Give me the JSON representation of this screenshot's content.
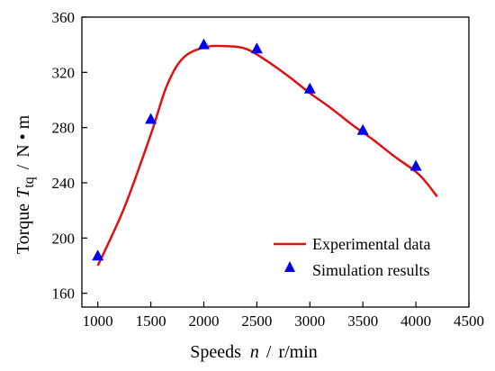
{
  "chart_data": {
    "type": "line",
    "xlabel": {
      "prefix": "Speeds",
      "symbol": "n",
      "sep": "/",
      "unit": "r/min"
    },
    "ylabel": {
      "prefix": "Torque",
      "symbol": "T",
      "subscript": "tq",
      "sep": "/",
      "unit": "N • m"
    },
    "xlim": [
      850,
      4500
    ],
    "ylim": [
      150,
      360
    ],
    "xticks": [
      1000,
      1500,
      2000,
      2500,
      3000,
      3500,
      4000,
      4500
    ],
    "yticks": [
      160,
      200,
      240,
      280,
      320,
      360
    ],
    "xtick_labels": [
      "1000",
      "1500",
      "2000",
      "2500",
      "3000",
      "3500",
      "4000",
      "4500"
    ],
    "ytick_labels": [
      "160",
      "200",
      "240",
      "280",
      "320",
      "360"
    ],
    "legend_position": "bottom-right",
    "series": [
      {
        "name": "Experimental data",
        "kind": "line",
        "color": "#e01010",
        "x": [
          1000,
          1250,
          1500,
          1650,
          1800,
          2000,
          2200,
          2400,
          2600,
          2800,
          3000,
          3200,
          3400,
          3600,
          3800,
          4000,
          4100,
          4200
        ],
        "y": [
          180,
          222,
          275,
          310,
          330,
          338,
          339,
          337,
          328,
          317,
          305,
          294,
          282,
          271,
          259,
          248,
          240,
          230
        ]
      },
      {
        "name": "Simulation results",
        "kind": "scatter",
        "marker": "triangle",
        "color": "#0000ee",
        "x": [
          1000,
          1500,
          2000,
          2500,
          3000,
          3500,
          4000
        ],
        "y": [
          187,
          286,
          340,
          337,
          308,
          278,
          252
        ]
      }
    ]
  }
}
